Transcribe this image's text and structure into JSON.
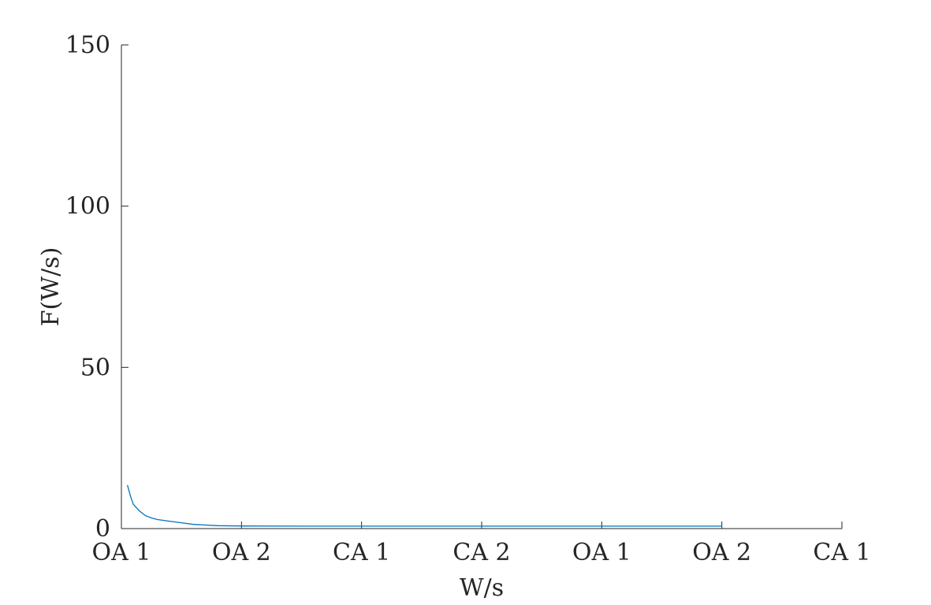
{
  "chart_data": {
    "type": "line",
    "title": "",
    "xlabel": "W/s",
    "ylabel": "F(W/s)",
    "ylim": [
      0,
      150
    ],
    "xlim": [
      0,
      6
    ],
    "yticks": [
      0,
      50,
      100,
      150
    ],
    "xticks": [
      0,
      1,
      2,
      3,
      4,
      5,
      6
    ],
    "xtick_labels": [
      "OA 1",
      "OA 2",
      "CA 1",
      "CA 2",
      "OA 1",
      "OA 2",
      "CA 1"
    ],
    "grid": false,
    "legend": "none",
    "series": [
      {
        "color": "#0072BD",
        "x": [
          0.05,
          0.08,
          0.1,
          0.15,
          0.2,
          0.25,
          0.3,
          0.4,
          0.5,
          0.6,
          0.8,
          1.0,
          1.5,
          2.0,
          3.0,
          4.0,
          5.0
        ],
        "y": [
          13.5,
          9.5,
          7.5,
          5.5,
          4.0,
          3.3,
          2.8,
          2.3,
          1.8,
          1.3,
          0.9,
          0.8,
          0.75,
          0.75,
          0.75,
          0.75,
          0.75
        ]
      }
    ]
  }
}
